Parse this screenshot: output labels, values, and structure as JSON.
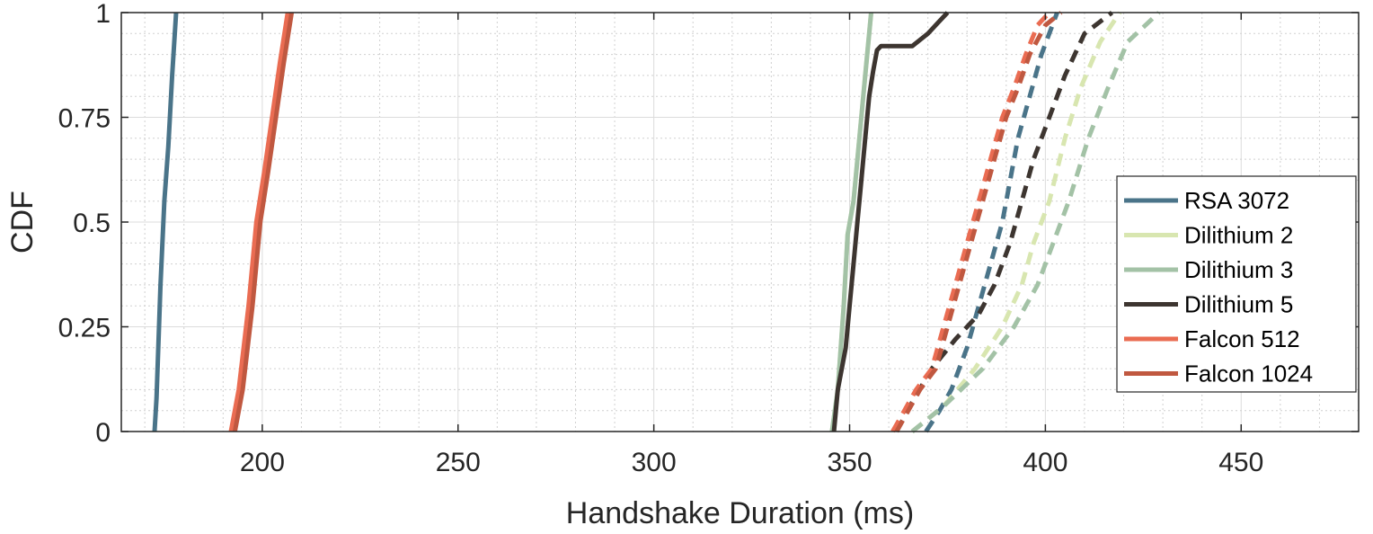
{
  "chart_data": {
    "type": "line",
    "xlabel": "Handshake Duration (ms)",
    "ylabel": "CDF",
    "xlim": [
      164,
      480
    ],
    "ylim": [
      0,
      1
    ],
    "xticks": [
      200,
      250,
      300,
      350,
      400,
      450
    ],
    "yticks": [
      0,
      0.25,
      0.5,
      0.75,
      1
    ],
    "ytick_labels": [
      "0",
      "0.25",
      "0.5",
      "0.75",
      "1"
    ],
    "grid": "major and minor",
    "legend_position": "lower-right",
    "series": [
      {
        "name": "RSA 3072",
        "color": "#4a7489",
        "style": "solid",
        "x": [
          172.5,
          173,
          174,
          175,
          176,
          177,
          178
        ],
        "y": [
          0,
          0.08,
          0.35,
          0.55,
          0.68,
          0.85,
          1.0
        ]
      },
      {
        "name": "RSA 3072",
        "color": "#4a7489",
        "style": "dashed",
        "x": [
          369.5,
          373,
          376,
          380,
          383,
          386,
          389,
          391,
          393,
          396,
          399,
          403
        ],
        "y": [
          0,
          0.05,
          0.1,
          0.2,
          0.3,
          0.4,
          0.5,
          0.6,
          0.7,
          0.8,
          0.9,
          1.0
        ]
      },
      {
        "name": "Dilithium 2",
        "color": "#d8e6b0",
        "style": "solid",
        "x": [
          345.5,
          347,
          348.5,
          349.5,
          351,
          352.5,
          354,
          355.5
        ],
        "y": [
          0,
          0.1,
          0.3,
          0.47,
          0.55,
          0.7,
          0.85,
          1.0
        ]
      },
      {
        "name": "Dilithium 2",
        "color": "#d8e6b0",
        "style": "dashed",
        "x": [
          366,
          374,
          382,
          389,
          394,
          397,
          401,
          405,
          409,
          414,
          419
        ],
        "y": [
          0,
          0.06,
          0.15,
          0.25,
          0.35,
          0.45,
          0.55,
          0.7,
          0.82,
          0.93,
          1.0
        ]
      },
      {
        "name": "Dilithium 3",
        "color": "#a3c2a6",
        "style": "solid",
        "x": [
          345.5,
          347,
          348.5,
          349.5,
          351,
          352.5,
          354,
          355.5
        ],
        "y": [
          0,
          0.1,
          0.3,
          0.47,
          0.55,
          0.7,
          0.85,
          1.0
        ]
      },
      {
        "name": "Dilithium 3",
        "color": "#a3c2a6",
        "style": "dashed",
        "x": [
          366,
          374,
          384,
          392,
          398,
          402,
          406,
          411,
          416,
          421,
          429
        ],
        "y": [
          0,
          0.06,
          0.15,
          0.25,
          0.35,
          0.45,
          0.55,
          0.7,
          0.82,
          0.93,
          1.0
        ]
      },
      {
        "name": "Dilithium 5",
        "color": "#3d3530",
        "style": "solid",
        "x": [
          346,
          347,
          349,
          350,
          351,
          352,
          353,
          354,
          355,
          356,
          357,
          358,
          366,
          370,
          373,
          375
        ],
        "y": [
          0,
          0.1,
          0.2,
          0.3,
          0.4,
          0.5,
          0.6,
          0.7,
          0.8,
          0.86,
          0.91,
          0.92,
          0.92,
          0.95,
          0.98,
          1.0
        ]
      },
      {
        "name": "Dilithium 5",
        "color": "#3d3530",
        "style": "dashed",
        "x": [
          362,
          366,
          371,
          377,
          383,
          387,
          391,
          394,
          397,
          401,
          405,
          410,
          417
        ],
        "y": [
          0,
          0.07,
          0.15,
          0.22,
          0.28,
          0.35,
          0.45,
          0.55,
          0.65,
          0.75,
          0.85,
          0.95,
          1.0
        ]
      },
      {
        "name": "Falcon 512",
        "color": "#ea6c52",
        "style": "solid",
        "x": [
          192,
          194,
          196.5,
          198.5,
          200.5,
          202.5,
          204.5,
          206.5
        ],
        "y": [
          0,
          0.1,
          0.3,
          0.5,
          0.62,
          0.75,
          0.88,
          1.0
        ]
      },
      {
        "name": "Falcon 512",
        "color": "#ea6c52",
        "style": "dashed",
        "x": [
          361,
          364,
          367,
          371,
          374,
          377,
          380,
          383,
          386,
          389,
          392,
          395,
          398,
          401
        ],
        "y": [
          0,
          0.05,
          0.1,
          0.15,
          0.25,
          0.35,
          0.45,
          0.55,
          0.65,
          0.75,
          0.82,
          0.9,
          0.97,
          1.0
        ]
      },
      {
        "name": "Falcon 1024",
        "color": "#c05840",
        "style": "solid",
        "x": [
          193,
          195,
          197.5,
          199.5,
          201.5,
          203.5,
          205.5,
          207.5
        ],
        "y": [
          0,
          0.1,
          0.3,
          0.5,
          0.62,
          0.75,
          0.88,
          1.0
        ]
      },
      {
        "name": "Falcon 1024",
        "color": "#c05840",
        "style": "dashed",
        "x": [
          362,
          365,
          368,
          372,
          375,
          378,
          381,
          384,
          387,
          390,
          393,
          396,
          400,
          404
        ],
        "y": [
          0,
          0.05,
          0.1,
          0.15,
          0.25,
          0.35,
          0.45,
          0.55,
          0.65,
          0.75,
          0.82,
          0.9,
          0.97,
          1.0
        ]
      }
    ],
    "legend": [
      {
        "name": "RSA 3072",
        "color": "#4a7489"
      },
      {
        "name": "Dilithium 2",
        "color": "#d8e6b0"
      },
      {
        "name": "Dilithium 3",
        "color": "#a3c2a6"
      },
      {
        "name": "Dilithium 5",
        "color": "#3d3530"
      },
      {
        "name": "Falcon 512",
        "color": "#ea6c52"
      },
      {
        "name": "Falcon 1024",
        "color": "#c05840"
      }
    ]
  }
}
